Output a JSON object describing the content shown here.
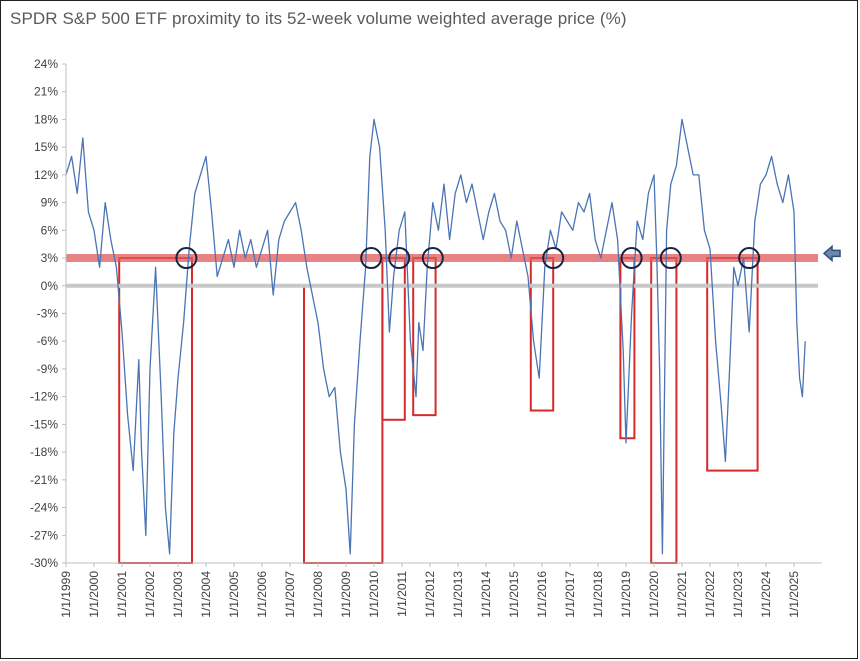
{
  "chart_data": {
    "type": "line",
    "title": "SPDR S&P 500 ETF proximity to its 52-week volume weighted average price (%)",
    "xlabel": "",
    "ylabel": "",
    "ylim": [
      -30,
      24
    ],
    "xlim": [
      "1999-01-01",
      "2025-12-31"
    ],
    "grid": false,
    "legend": "none",
    "y_ticks": [
      "24%",
      "21%",
      "18%",
      "15%",
      "12%",
      "9%",
      "6%",
      "3%",
      "0%",
      "-3%",
      "-6%",
      "-9%",
      "-12%",
      "-15%",
      "-18%",
      "-21%",
      "-24%",
      "-27%",
      "-30%"
    ],
    "x_ticks": [
      "1/1/1999",
      "1/1/2000",
      "1/1/2001",
      "1/1/2002",
      "1/1/2003",
      "1/1/2004",
      "1/1/2005",
      "1/1/2006",
      "1/1/2007",
      "1/1/2008",
      "1/1/2009",
      "1/1/2010",
      "1/1/2011",
      "1/1/2012",
      "1/1/2013",
      "1/1/2014",
      "1/1/2015",
      "1/1/2016",
      "1/1/2017",
      "1/1/2018",
      "1/1/2019",
      "1/1/2020",
      "1/1/2021",
      "1/1/2022",
      "1/1/2023",
      "1/1/2024",
      "1/1/2025"
    ],
    "series": [
      {
        "color": "#4a74b4",
        "x": [
          1999.0,
          1999.2,
          1999.4,
          1999.6,
          1999.8,
          2000.0,
          2000.2,
          2000.4,
          2000.6,
          2000.8,
          2001.0,
          2001.2,
          2001.4,
          2001.6,
          2001.7,
          2001.85,
          2002.0,
          2002.2,
          2002.4,
          2002.55,
          2002.7,
          2002.85,
          2003.0,
          2003.2,
          2003.4,
          2003.6,
          2003.8,
          2004.0,
          2004.2,
          2004.4,
          2004.6,
          2004.8,
          2005.0,
          2005.2,
          2005.4,
          2005.6,
          2005.8,
          2006.0,
          2006.2,
          2006.4,
          2006.6,
          2006.8,
          2007.0,
          2007.2,
          2007.4,
          2007.6,
          2007.8,
          2008.0,
          2008.2,
          2008.4,
          2008.6,
          2008.8,
          2009.0,
          2009.15,
          2009.3,
          2009.5,
          2009.7,
          2009.85,
          2010.0,
          2010.2,
          2010.4,
          2010.55,
          2010.7,
          2010.9,
          2011.1,
          2011.3,
          2011.5,
          2011.6,
          2011.75,
          2011.9,
          2012.1,
          2012.3,
          2012.5,
          2012.7,
          2012.9,
          2013.1,
          2013.3,
          2013.5,
          2013.7,
          2013.9,
          2014.1,
          2014.3,
          2014.5,
          2014.7,
          2014.9,
          2015.1,
          2015.3,
          2015.5,
          2015.7,
          2015.9,
          2016.1,
          2016.3,
          2016.5,
          2016.7,
          2016.9,
          2017.1,
          2017.3,
          2017.5,
          2017.7,
          2017.9,
          2018.1,
          2018.3,
          2018.5,
          2018.7,
          2018.9,
          2019.0,
          2019.2,
          2019.4,
          2019.6,
          2019.8,
          2020.0,
          2020.1,
          2020.2,
          2020.3,
          2020.45,
          2020.6,
          2020.8,
          2021.0,
          2021.2,
          2021.4,
          2021.6,
          2021.8,
          2022.0,
          2022.2,
          2022.4,
          2022.55,
          2022.7,
          2022.85,
          2023.0,
          2023.2,
          2023.4,
          2023.6,
          2023.8,
          2024.0,
          2024.2,
          2024.4,
          2024.6,
          2024.8,
          2025.0,
          2025.1,
          2025.2,
          2025.3,
          2025.4
        ],
        "y": [
          12,
          14,
          10,
          16,
          8,
          6,
          2,
          9,
          5,
          2,
          -5,
          -14,
          -20,
          -8,
          -18,
          -27,
          -9,
          2,
          -12,
          -24,
          -29,
          -16,
          -10,
          -4,
          4,
          10,
          12,
          14,
          8,
          1,
          3,
          5,
          2,
          6,
          3,
          5,
          2,
          4,
          6,
          -1,
          5,
          7,
          8,
          9,
          6,
          2,
          -1,
          -4,
          -9,
          -12,
          -11,
          -18,
          -22,
          -29,
          -15,
          -6,
          2,
          14,
          18,
          15,
          6,
          -5,
          1,
          6,
          8,
          -6,
          -12,
          -4,
          -7,
          2,
          9,
          6,
          11,
          5,
          10,
          12,
          9,
          11,
          8,
          5,
          8,
          10,
          7,
          6,
          3,
          7,
          4,
          1,
          -6,
          -10,
          2,
          6,
          4,
          8,
          7,
          6,
          9,
          8,
          10,
          5,
          3,
          6,
          9,
          5,
          -7,
          -17,
          -3,
          7,
          5,
          10,
          12,
          3,
          -9,
          -29,
          6,
          11,
          13,
          18,
          15,
          12,
          12,
          6,
          4,
          -6,
          -13,
          -19,
          -9,
          2,
          0,
          3,
          -5,
          7,
          11,
          12,
          14,
          11,
          9,
          12,
          8,
          -4,
          -10,
          -12,
          -6
        ]
      }
    ],
    "reference_lines": [
      {
        "y": 3,
        "color": "#e05a5a"
      },
      {
        "y": 0,
        "color": "#c8c8c8"
      }
    ],
    "highlight_boxes": [
      {
        "x0": 2000.9,
        "x1": 2003.5,
        "y0": -30,
        "y1": 3
      },
      {
        "x0": 2007.5,
        "x1": 2010.3,
        "y0": -30,
        "y1": 0
      },
      {
        "x0": 2010.3,
        "x1": 2011.1,
        "y0": -14.5,
        "y1": 3
      },
      {
        "x0": 2011.4,
        "x1": 2012.2,
        "y0": -14,
        "y1": 3
      },
      {
        "x0": 2015.6,
        "x1": 2016.4,
        "y0": -13.5,
        "y1": 3
      },
      {
        "x0": 2018.8,
        "x1": 2019.3,
        "y0": -16.5,
        "y1": 3
      },
      {
        "x0": 2019.9,
        "x1": 2020.8,
        "y0": -30,
        "y1": 3
      },
      {
        "x0": 2021.9,
        "x1": 2023.7,
        "y0": -20,
        "y1": 3
      }
    ],
    "circle_markers": [
      {
        "x": 2003.3,
        "y": 3
      },
      {
        "x": 2009.9,
        "y": 3
      },
      {
        "x": 2010.9,
        "y": 3
      },
      {
        "x": 2012.1,
        "y": 3
      },
      {
        "x": 2016.4,
        "y": 3
      },
      {
        "x": 2019.2,
        "y": 3
      },
      {
        "x": 2020.6,
        "y": 3
      },
      {
        "x": 2023.4,
        "y": 3
      }
    ],
    "arrow_marker": {
      "y": 3.5,
      "color": "#2f4f7f"
    }
  }
}
